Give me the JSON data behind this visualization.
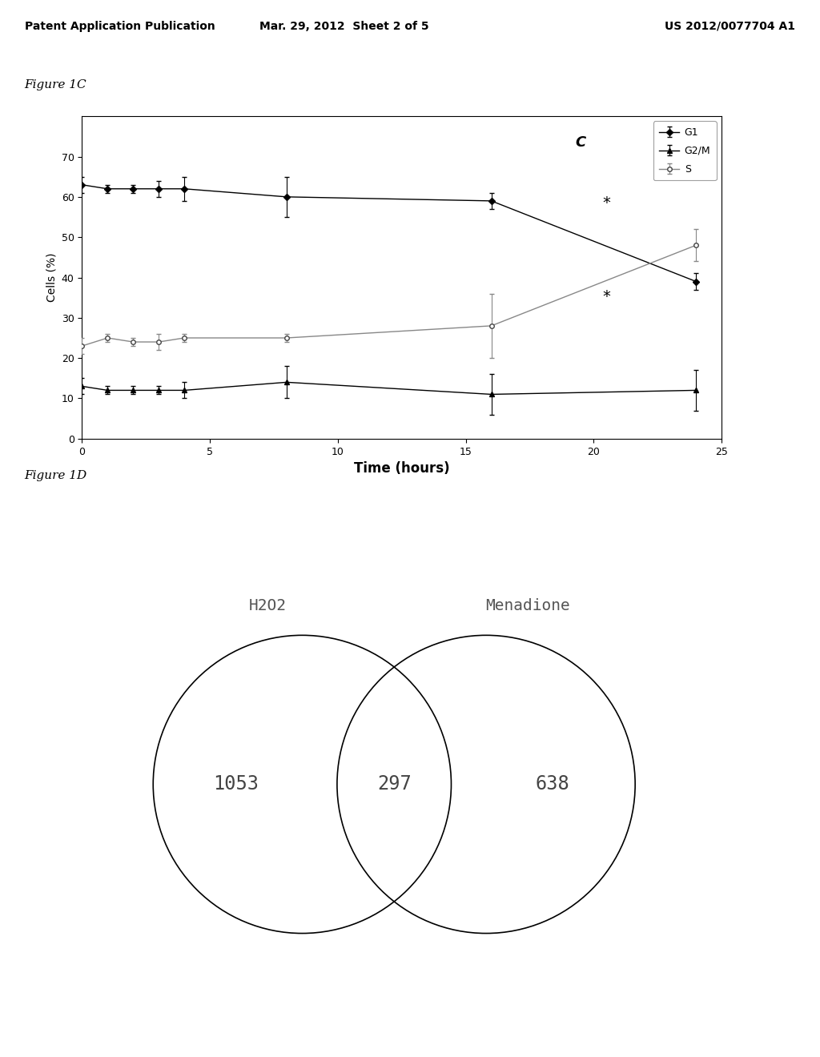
{
  "header_left": "Patent Application Publication",
  "header_mid": "Mar. 29, 2012  Sheet 2 of 5",
  "header_right": "US 2012/0077704 A1",
  "fig1c_label": "Figure 1C",
  "fig1d_label": "Figure 1D",
  "G1_x": [
    0,
    1,
    2,
    3,
    4,
    8,
    16,
    24
  ],
  "G1_y": [
    63,
    62,
    62,
    62,
    62,
    60,
    59,
    39
  ],
  "G1_err": [
    2,
    1,
    1,
    2,
    3,
    5,
    2,
    2
  ],
  "G2M_x": [
    0,
    1,
    2,
    3,
    4,
    8,
    16,
    24
  ],
  "G2M_y": [
    13,
    12,
    12,
    12,
    12,
    14,
    11,
    12
  ],
  "G2M_err": [
    2,
    1,
    1,
    1,
    2,
    4,
    5,
    5
  ],
  "S_x": [
    0,
    1,
    2,
    3,
    4,
    8,
    16,
    24
  ],
  "S_y": [
    23,
    25,
    24,
    24,
    25,
    25,
    28,
    48
  ],
  "S_err": [
    2,
    1,
    1,
    2,
    1,
    1,
    8,
    4
  ],
  "xlim": [
    0,
    25
  ],
  "ylim": [
    0,
    80
  ],
  "yticks": [
    0,
    10,
    20,
    30,
    40,
    50,
    60,
    70
  ],
  "xticks": [
    0,
    5,
    10,
    15,
    20,
    25
  ],
  "xlabel": "Time (hours)",
  "ylabel": "Cells (%)",
  "annotation_C": "C",
  "annotation_star1": "*",
  "annotation_star2": "*",
  "venn_label_left": "H2O2",
  "venn_label_right": "Menadione",
  "venn_left_val": "1053",
  "venn_intersect_val": "297",
  "venn_right_val": "638",
  "bg_color": "#ffffff",
  "line_color": "#333333",
  "font_color": "#000000"
}
